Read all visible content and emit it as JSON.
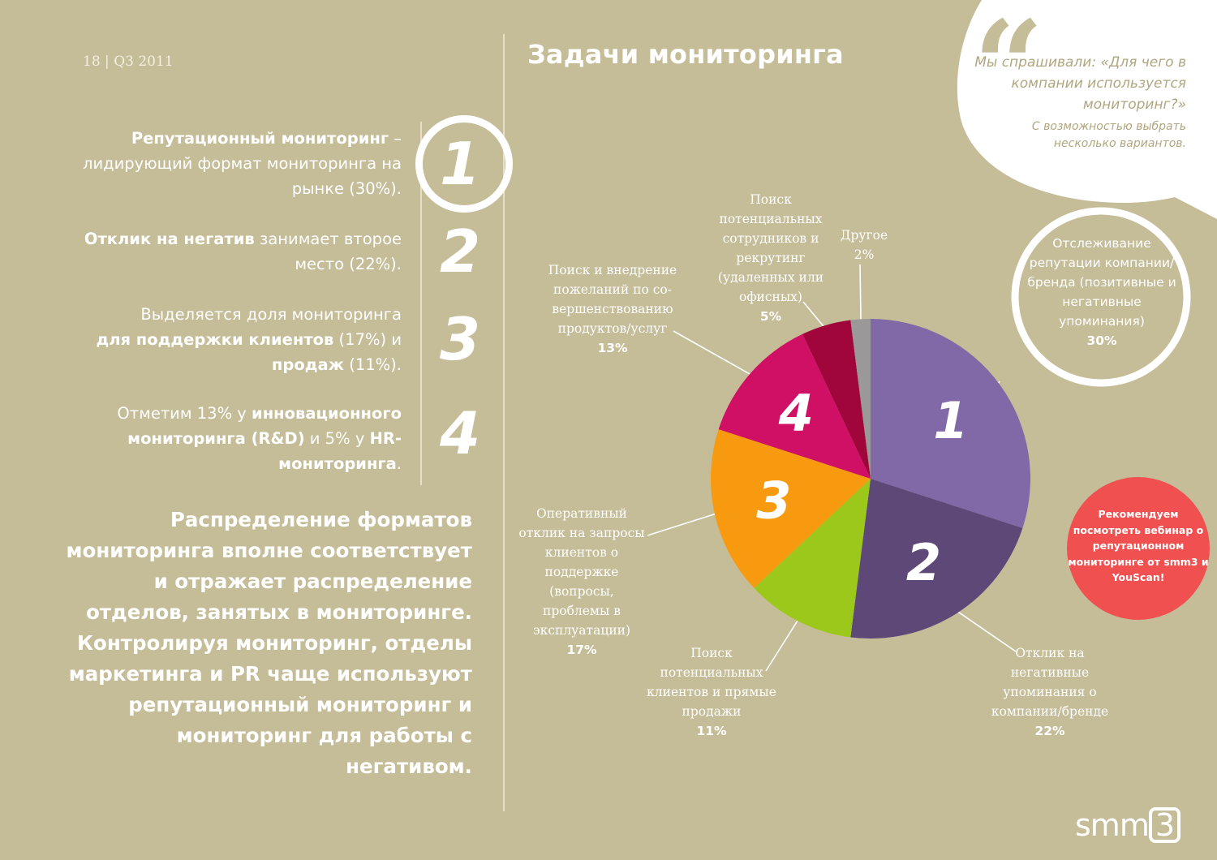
{
  "header": {
    "page_number": "18",
    "separator": "|",
    "period": "Q3 2011",
    "title": "Задачи мониторинга"
  },
  "points": {
    "p1": {
      "bold": "Репутационный мониторинг",
      "rest": " – лидирующий формат мониторинга на рынке (30%)."
    },
    "p2": {
      "bold": "Отклик на негатив",
      "rest": " занимает второе место (22%)."
    },
    "p3": {
      "line1": "Выделяется доля мониторинга",
      "bold1": "для поддержки клиентов",
      "mid": " (17%) и ",
      "bold2": "продаж",
      "end": " (11%)."
    },
    "p4": {
      "line1": "Отметим 13% у ",
      "bold1": "инновационного мониторинга (R&D)",
      "mid": " и 5% у ",
      "bold2": "HR-мониторинга",
      "end": "."
    }
  },
  "numbers": [
    "1",
    "2",
    "3",
    "4"
  ],
  "summary": "Распределение форматов мониторинга вполне соответствует и отражает распределение отделов, занятых в мониторинге. Контролируя мониторинг, отделы маркетинга и PR чаще используют репутационный мониторинг и мониторинг для работы с негативом.",
  "quote": {
    "mark": "“",
    "text": "Мы спрашивали: «Для чего в компании используется мониторинг?»",
    "note": "С возможностью выбрать несколько вариантов."
  },
  "promo": "Рекомендуем посмотреть вебинар о репутационном мониторинге от smm3 и YouScan!",
  "logo": {
    "text": "smm",
    "box": "3"
  },
  "colors": {
    "background": "#c5bc98",
    "reputation": "#8168a6",
    "negative": "#5e4878",
    "sales": "#9bc81a",
    "support": "#f89a10",
    "innovation": "#d01065",
    "hr": "#a0063c",
    "other": "#9a9898",
    "promo": "#f15050"
  },
  "chart_data": {
    "type": "pie",
    "slices": [
      {
        "label": "Отслеживание репутации компании/бренда (позитивные и негативные упоминания)",
        "value": 30,
        "pct_label": "30%",
        "number": "1",
        "color": "#8168a6"
      },
      {
        "label": "Отклик на негативные упоминания о компании/бренде",
        "value": 22,
        "pct_label": "22%",
        "number": "2",
        "color": "#5e4878"
      },
      {
        "label": "Поиск потенциальных клиентов и прямые продажи",
        "value": 11,
        "pct_label": "11%",
        "number": "",
        "color": "#9bc81a"
      },
      {
        "label": "Оперативный отклик на запросы клиентов о поддержке (вопросы, проблемы в эксплуатации)",
        "value": 17,
        "pct_label": "17%",
        "number": "3",
        "color": "#f89a10"
      },
      {
        "label": "Поиск и внедрение пожеланий по со-вершенствованию продуктов/услуг",
        "value": 13,
        "pct_label": "13%",
        "number": "4",
        "color": "#d01065"
      },
      {
        "label": "Поиск потенциальных сотрудников и рекрутинг (удаленных или офисных)",
        "value": 5,
        "pct_label": "5%",
        "number": "",
        "color": "#a0063c"
      },
      {
        "label": "Другое",
        "value": 2,
        "pct_label": "2%",
        "number": "",
        "color": "#9a9898"
      }
    ],
    "labels_text": {
      "reputation": "Отслеживание репутации компании/бренда (позитивные и негативные упоминания)",
      "negative": "Отклик на негативные упоминания о компании/бренде",
      "sales": "Поиск потенциальных клиентов и прямые продажи",
      "support": "Оперативный отклик на запросы клиентов о поддержке (вопросы, проблемы в эксплуатации)",
      "innovation": "Поиск и внедрение пожеланий по со-вершенствованию продуктов/услуг",
      "hr": "Поиск потенциальных сотрудников и рекрутинг (удаленных или офисных)",
      "other": "Другое"
    },
    "pcts": {
      "reputation": "30%",
      "negative": "22%",
      "sales": "11%",
      "support": "17%",
      "innovation": "13%",
      "hr": "5%",
      "other": "2%"
    }
  }
}
